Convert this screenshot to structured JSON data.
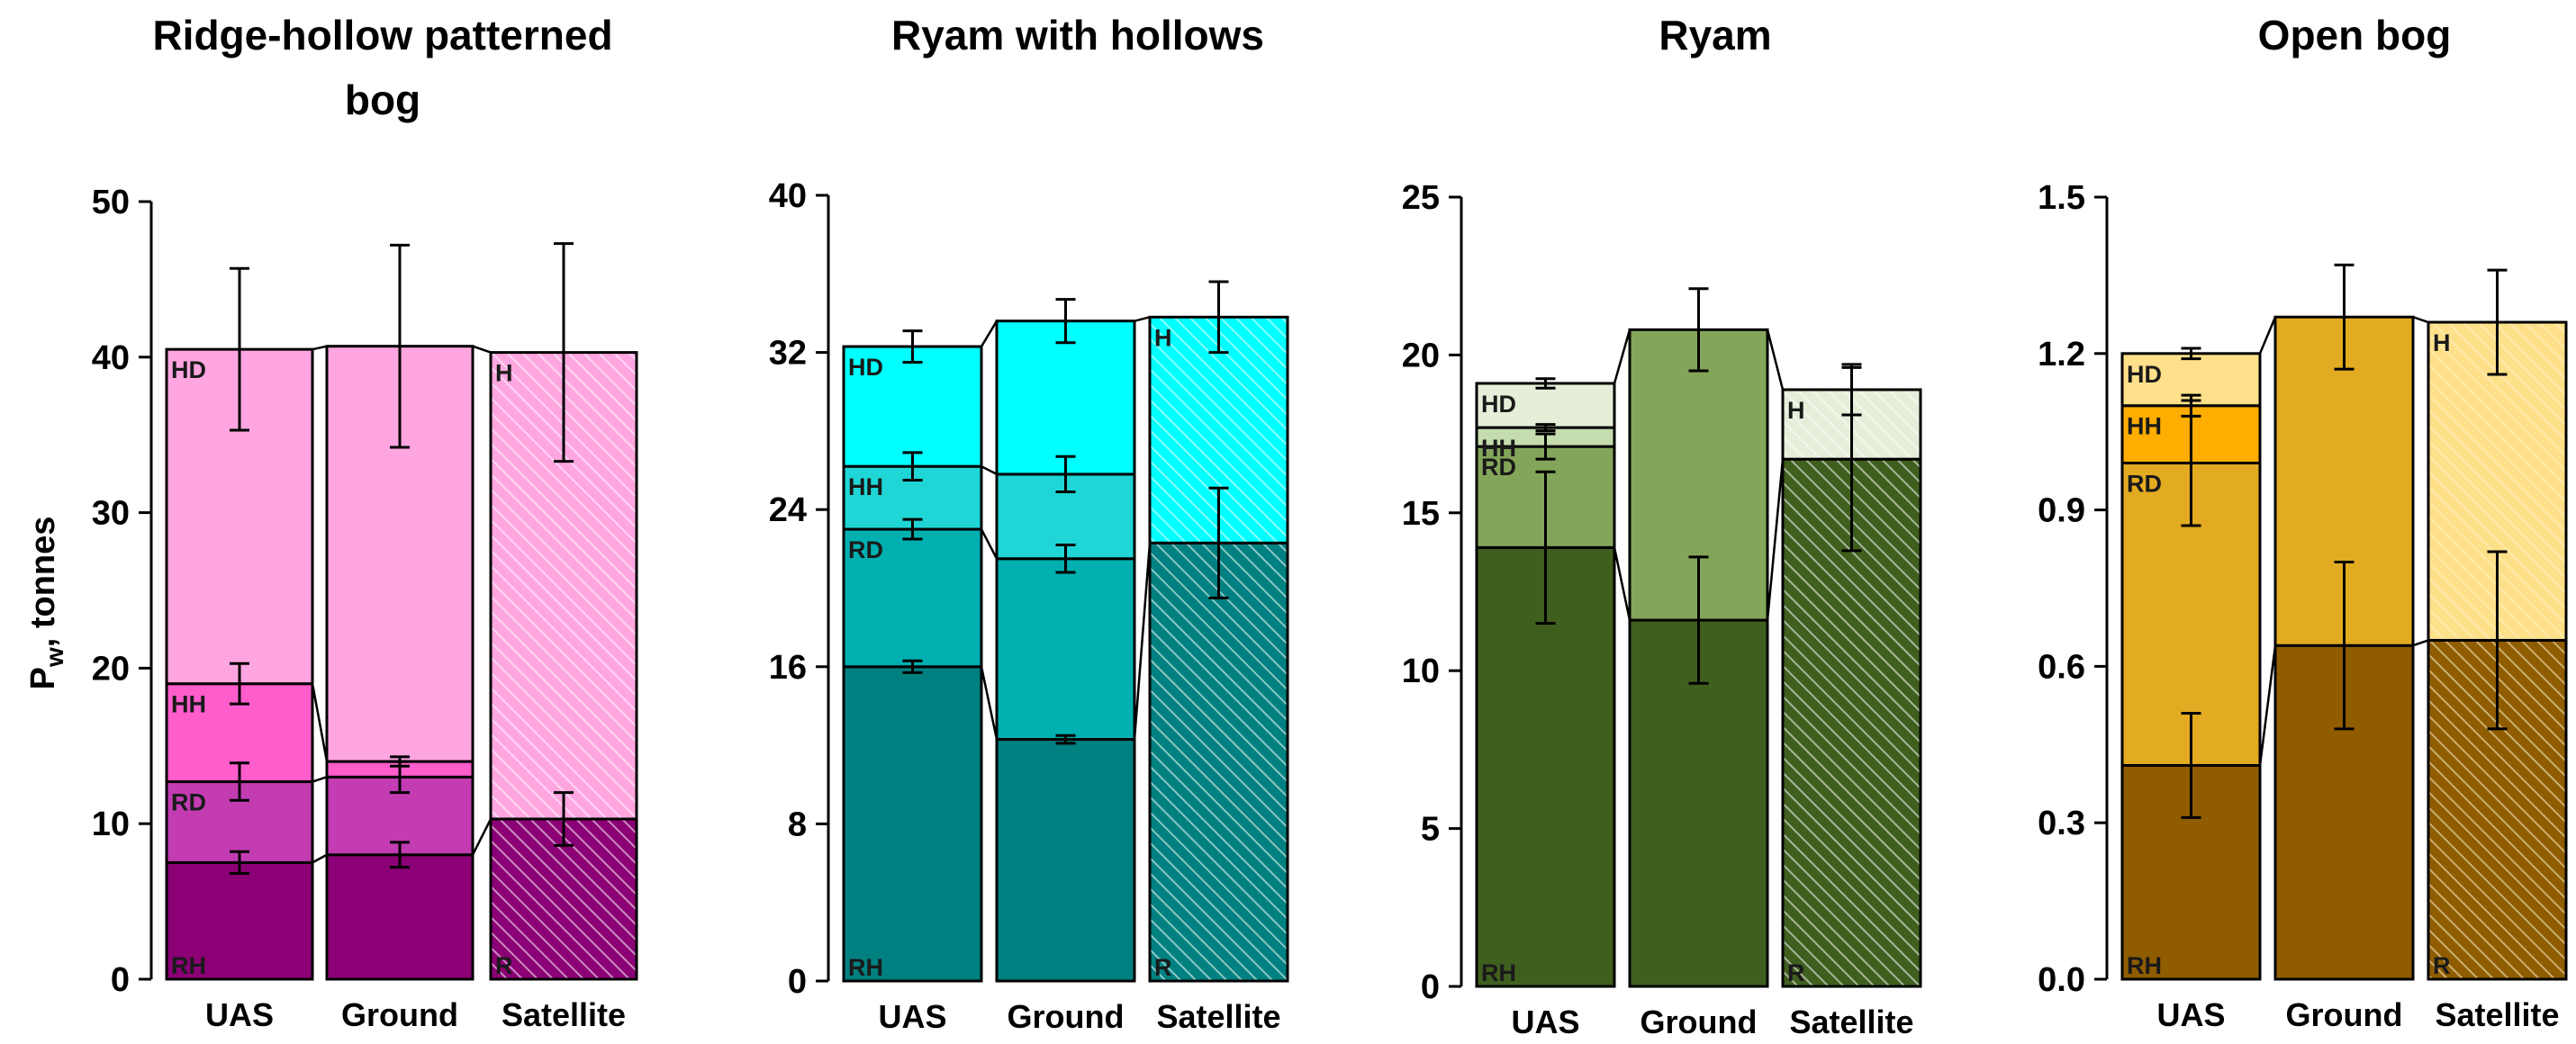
{
  "y_axis_label": "P",
  "y_axis_label_sub": "w",
  "y_axis_label_suffix": ", tonnes",
  "chart_data": [
    {
      "type": "bar",
      "stacked": true,
      "title_lines": [
        "Ridge-hollow patterned",
        "bog"
      ],
      "categories": [
        "UAS",
        "Ground",
        "Satellite"
      ],
      "ylim": [
        0,
        50
      ],
      "yticks": [
        "0",
        "10",
        "20",
        "30",
        "40",
        "50"
      ],
      "colors": [
        "#8b0075",
        "#c33cb2",
        "#ff5ccc",
        "#ffa6e0"
      ],
      "hatch_color": "#ffffff",
      "bars": [
        {
          "category": "UAS",
          "segments": [
            {
              "label": "RH",
              "top": 7.5,
              "error": 0.7
            },
            {
              "label": "RD",
              "top": 12.7,
              "error": 1.2
            },
            {
              "label": "HH",
              "top": 19.0,
              "error": 1.3
            },
            {
              "label": "HD",
              "top": 40.5,
              "error": 5.2
            }
          ]
        },
        {
          "category": "Ground",
          "segments": [
            {
              "label": "",
              "top": 8.0,
              "error": 0.8
            },
            {
              "label": "",
              "top": 13.0,
              "error": 1.0
            },
            {
              "label": "",
              "top": 14.0,
              "error": 0.3
            },
            {
              "label": "",
              "top": 40.7,
              "error": 6.5
            }
          ]
        },
        {
          "category": "Satellite",
          "hatched": true,
          "segments": [
            {
              "label": "R",
              "top": 10.3,
              "error": 1.7
            },
            {
              "label": "H",
              "top": 40.3,
              "error": 7.0
            }
          ]
        }
      ]
    },
    {
      "type": "bar",
      "stacked": true,
      "title_lines": [
        "Ryam with hollows"
      ],
      "categories": [
        "UAS",
        "Ground",
        "Satellite"
      ],
      "ylim": [
        0,
        40
      ],
      "yticks": [
        "0",
        "8",
        "16",
        "24",
        "32",
        "40"
      ],
      "colors": [
        "#008080",
        "#00b0b0",
        "#20d5d5",
        "#00ffff"
      ],
      "hatch_color": "#ffffff",
      "bars": [
        {
          "category": "UAS",
          "segments": [
            {
              "label": "RH",
              "top": 16.0,
              "error": 0.3
            },
            {
              "label": "RD",
              "top": 23.0,
              "error": 0.5
            },
            {
              "label": "HH",
              "top": 26.2,
              "error": 0.7
            },
            {
              "label": "HD",
              "top": 32.3,
              "error": 0.8
            }
          ]
        },
        {
          "category": "Ground",
          "segments": [
            {
              "label": "",
              "top": 12.3,
              "error": 0.2
            },
            {
              "label": "",
              "top": 21.5,
              "error": 0.7
            },
            {
              "label": "",
              "top": 25.8,
              "error": 0.9
            },
            {
              "label": "",
              "top": 33.6,
              "error": 1.1
            }
          ]
        },
        {
          "category": "Satellite",
          "hatched": true,
          "segments": [
            {
              "label": "R",
              "top": 22.3,
              "error": 2.8
            },
            {
              "label": "H",
              "top": 33.8,
              "error": 1.8
            }
          ]
        }
      ]
    },
    {
      "type": "bar",
      "stacked": true,
      "title_lines": [
        "Ryam"
      ],
      "categories": [
        "UAS",
        "Ground",
        "Satellite"
      ],
      "ylim": [
        0,
        25
      ],
      "yticks": [
        "0",
        "5",
        "10",
        "15",
        "20",
        "25"
      ],
      "colors": [
        "#3f5f1e",
        "#83a55a",
        "#c5dcae",
        "#e4eed8"
      ],
      "hatch_color": "#ffffff",
      "bars": [
        {
          "category": "UAS",
          "segments": [
            {
              "label": "RH",
              "top": 13.9,
              "error": 2.4
            },
            {
              "label": "RD",
              "top": 17.1,
              "error": 0.4
            },
            {
              "label": "HH",
              "top": 17.7,
              "error": 0.1
            },
            {
              "label": "HD",
              "top": 19.1,
              "error": 0.15
            }
          ]
        },
        {
          "category": "Ground",
          "segments": [
            {
              "label": "",
              "top": 11.6,
              "error": 2.0
            },
            {
              "label": "",
              "top": 20.8,
              "error": 1.3
            }
          ]
        },
        {
          "category": "Satellite",
          "hatched": true,
          "segments": [
            {
              "label": "R",
              "top": 16.7,
              "error": 2.9
            },
            {
              "label": "H",
              "top": 18.9,
              "error": 0.8
            }
          ]
        }
      ]
    },
    {
      "type": "bar",
      "stacked": true,
      "title_lines": [
        "Open bog"
      ],
      "categories": [
        "UAS",
        "Ground",
        "Satellite"
      ],
      "ylim": [
        0.0,
        1.5
      ],
      "yticks": [
        "0.0",
        "0.3",
        "0.6",
        "0.9",
        "1.2",
        "1.5"
      ],
      "colors": [
        "#8f5c00",
        "#e3ab21",
        "#ffad00",
        "#ffe08a"
      ],
      "hatch_color": "#fff3c8",
      "bars": [
        {
          "category": "UAS",
          "segments": [
            {
              "label": "RH",
              "top": 0.41,
              "error": 0.1
            },
            {
              "label": "RD",
              "top": 0.99,
              "error": 0.12
            },
            {
              "label": "HH",
              "top": 1.1,
              "error": 0.02
            },
            {
              "label": "HD",
              "top": 1.2,
              "error": 0.01
            }
          ]
        },
        {
          "category": "Ground",
          "segments": [
            {
              "label": "",
              "top": 0.64,
              "error": 0.16
            },
            {
              "label": "",
              "top": 1.27,
              "error": 0.1
            }
          ]
        },
        {
          "category": "Satellite",
          "hatched": true,
          "segments": [
            {
              "label": "R",
              "top": 0.65,
              "error": 0.17
            },
            {
              "label": "H",
              "top": 1.26,
              "error": 0.1
            }
          ]
        }
      ]
    }
  ]
}
